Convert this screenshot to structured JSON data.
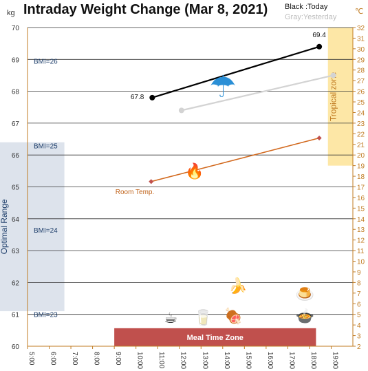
{
  "chart_data": {
    "type": "line",
    "title": "Intraday Weight Change (Mar 8, 2021)",
    "legend": {
      "today": "Black :Today",
      "yesterday": "Gray:Yesterday"
    },
    "y_left": {
      "unit": "kg",
      "range": [
        60,
        70
      ],
      "ticks": [
        "60",
        "61",
        "62",
        "63",
        "64",
        "65",
        "66",
        "67",
        "68",
        "69",
        "70"
      ]
    },
    "y_right": {
      "unit": "℃",
      "range": [
        2,
        32
      ],
      "ticks": [
        "2",
        "3",
        "4",
        "5",
        "6",
        "7",
        "8",
        "9",
        "10",
        "11",
        "12",
        "13",
        "14",
        "15",
        "16",
        "17",
        "18",
        "19",
        "20",
        "21",
        "22",
        "23",
        "24",
        "25",
        "26",
        "27",
        "28",
        "29",
        "30",
        "31",
        "32"
      ]
    },
    "x": {
      "range_hours": [
        5,
        20
      ],
      "ticks": [
        "5:00",
        "6:00",
        "7:00",
        "8:00",
        "9:00",
        "10:00",
        "11:00",
        "12:00",
        "13:00",
        "14:00",
        "15:00",
        "16:00",
        "17:00",
        "18:00",
        "19:00"
      ]
    },
    "series": [
      {
        "name": "Today",
        "color": "#000000",
        "x": [
          10.75,
          18.45
        ],
        "y": [
          67.8,
          69.4
        ],
        "labels": [
          "67.8",
          "69.4"
        ]
      },
      {
        "name": "Yesterday",
        "color": "#d3d3d3",
        "x": [
          12.1,
          19.1
        ],
        "y": [
          67.4,
          68.5
        ]
      },
      {
        "name": "Room Temp.",
        "color": "#d2691e",
        "axis": "right",
        "x": [
          10.7,
          18.45
        ],
        "y": [
          17.5,
          21.6
        ]
      }
    ],
    "bmi_lines": [
      {
        "label": "BMI=26",
        "y": 68.95
      },
      {
        "label": "BMI=25",
        "y": 66.3
      },
      {
        "label": "BMI=24",
        "y": 63.65
      },
      {
        "label": "BMI=23",
        "y": 61.0
      }
    ],
    "optimal_range": {
      "label": "Optimal Range",
      "y_range": [
        61.1,
        66.4
      ],
      "x_range": [
        5,
        6.7
      ],
      "color": "#dde3ec"
    },
    "tropical_zone": {
      "label": "Tropical zone",
      "temp_range": [
        19,
        32
      ],
      "x_range": [
        18.85,
        20
      ],
      "color": "#fde7a6"
    },
    "meal_time_zone": {
      "label": "Meal Time Zone",
      "x_range": [
        9,
        18.3
      ],
      "y_range": [
        60,
        60.5
      ],
      "color": "#c0504d"
    },
    "icons": [
      {
        "name": "umbrella-icon",
        "glyph": "☂",
        "x": 14.0,
        "y": 68.15,
        "color": "#2a8fd6"
      },
      {
        "name": "fireplace-icon",
        "glyph": "🔥",
        "x": 12.7,
        "y": 65.5,
        "color": "#c0392b"
      },
      {
        "name": "coffee-cup-icon",
        "glyph": "☕",
        "x": 11.6,
        "y": 60.9,
        "color": "#333333"
      },
      {
        "name": "water-glass-icon",
        "glyph": "🥛",
        "x": 13.1,
        "y": 60.9,
        "color": "#9ecde8"
      },
      {
        "name": "steak-icon",
        "glyph": "🍖",
        "x": 14.5,
        "y": 60.95,
        "color": "#8b4513"
      },
      {
        "name": "banana-icon",
        "glyph": "🍌",
        "x": 14.7,
        "y": 61.9,
        "color": "#f0c419"
      },
      {
        "name": "pudding-icon",
        "glyph": "🍮",
        "x": 17.8,
        "y": 61.65,
        "color": "#c98a2b"
      },
      {
        "name": "soup-bowl-icon",
        "glyph": "🍲",
        "x": 17.8,
        "y": 60.95,
        "color": "#7a4a2a"
      }
    ]
  }
}
